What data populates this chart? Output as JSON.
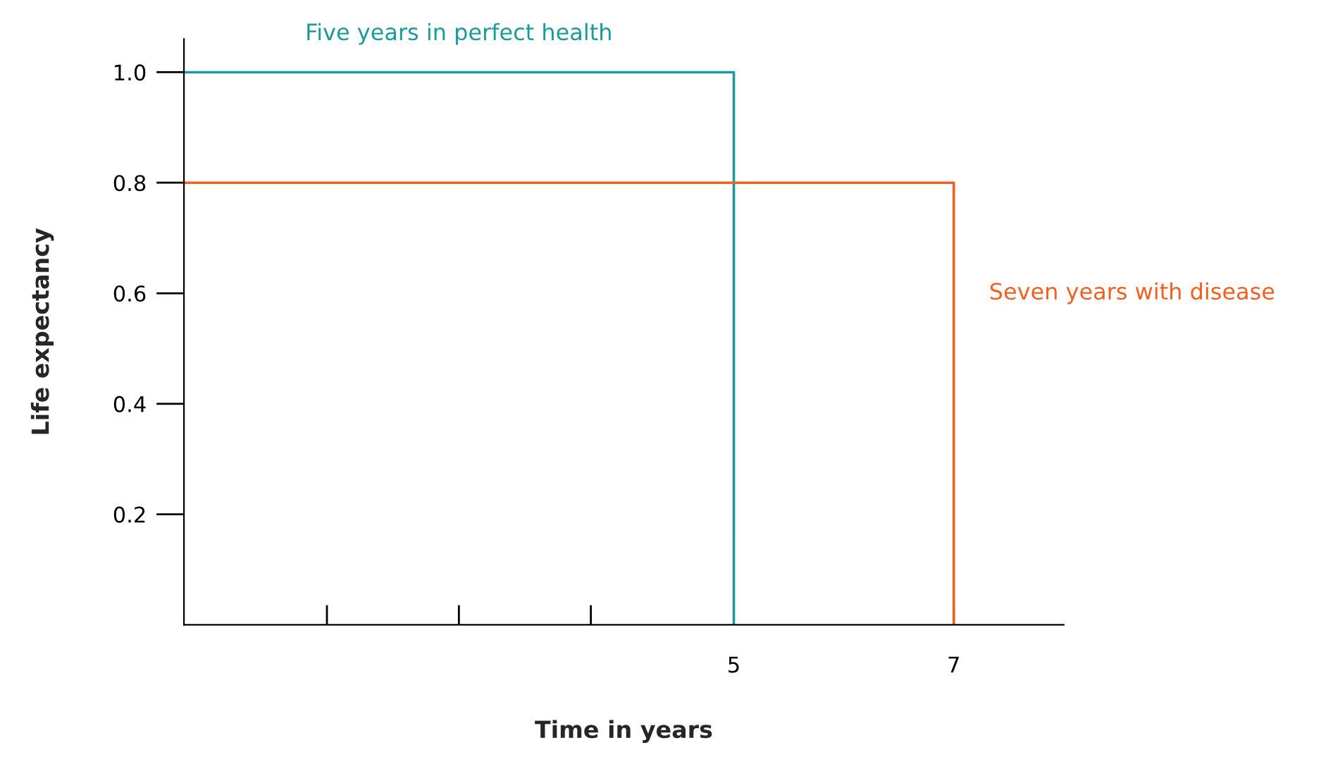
{
  "chart_data": {
    "type": "line",
    "xlabel": "Time in years",
    "ylabel": "Life expectancy",
    "xlim": [
      0,
      8
    ],
    "ylim": [
      0,
      1.06
    ],
    "xticks": [
      {
        "value": 1.3,
        "label": null
      },
      {
        "value": 2.5,
        "label": null
      },
      {
        "value": 3.7,
        "label": null
      },
      5,
      7
    ],
    "yticks": [
      0.2,
      0.4,
      0.6,
      0.8,
      {
        "value": 1,
        "label": "1.0"
      }
    ],
    "grid": false,
    "legend": false,
    "series": [
      {
        "name": "Five years in perfect health",
        "color": "#1a9a9a",
        "x": [
          0,
          5,
          5
        ],
        "values": [
          1.0,
          1.0,
          0
        ]
      },
      {
        "name": "Seven years with disease",
        "color": "#f06020",
        "x": [
          0,
          7,
          7
        ],
        "values": [
          0.8,
          0.8,
          0
        ]
      }
    ]
  }
}
